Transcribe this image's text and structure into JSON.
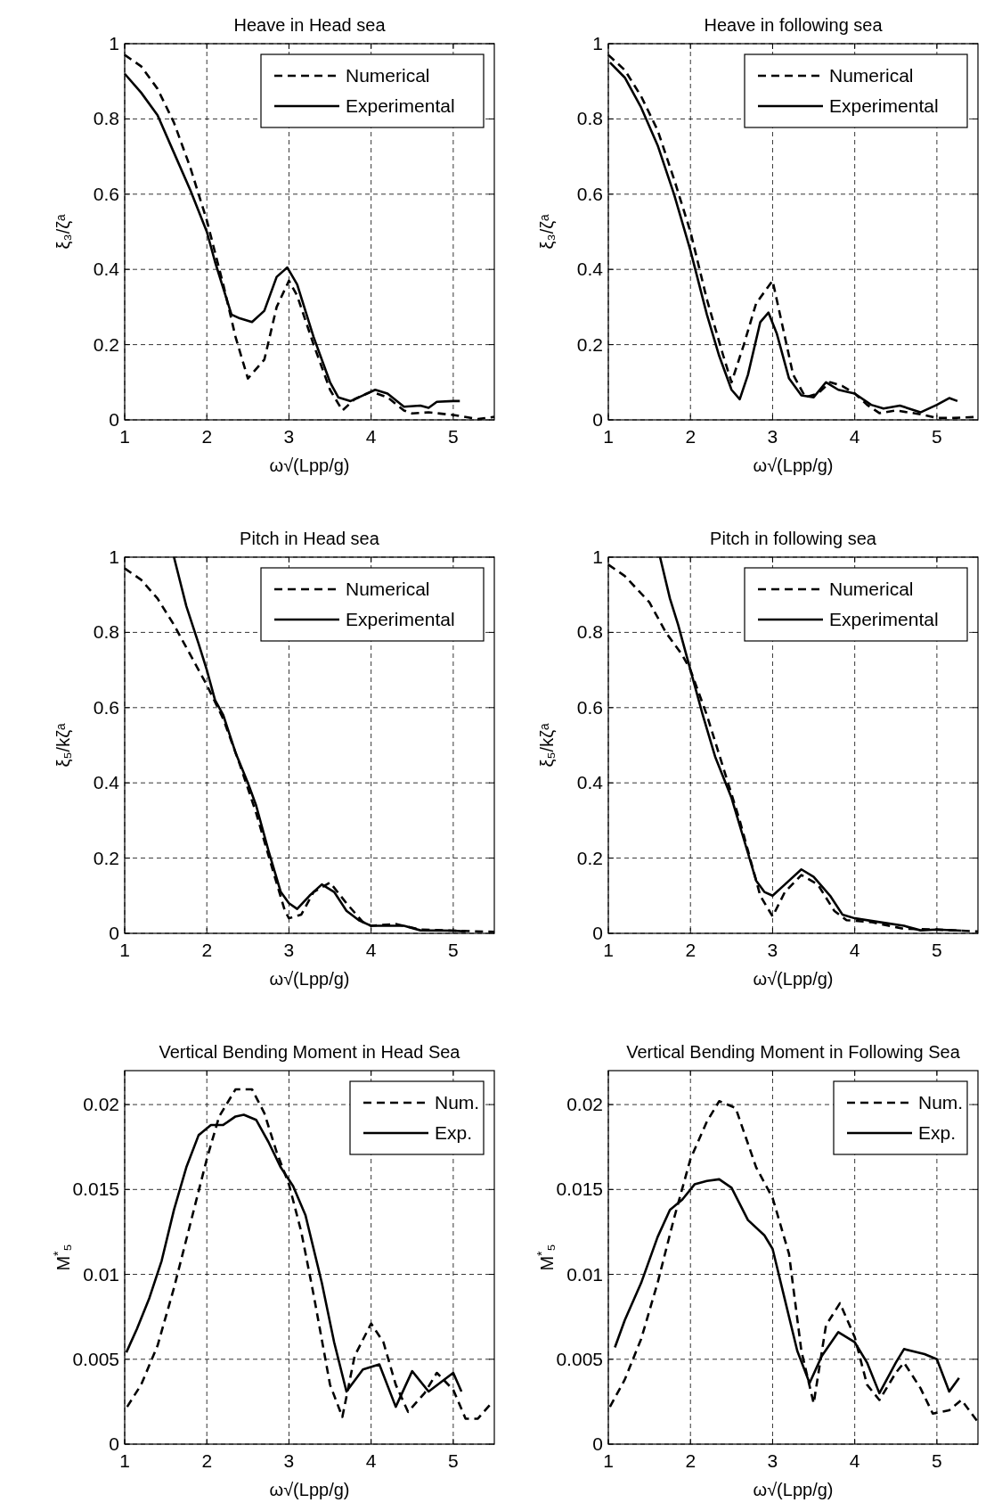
{
  "chart_data": [
    {
      "type": "line",
      "title": "Heave in Head sea",
      "xlabel": "ω√(Lpp/g)",
      "ylabel": "ξ₃/ζᵃ",
      "xlim": [
        1,
        5.5
      ],
      "xticks": [
        1,
        2,
        3,
        4,
        5
      ],
      "ylim": [
        0,
        1
      ],
      "yticks": [
        0,
        0.2,
        0.4,
        0.6,
        0.8,
        1
      ],
      "grid": true,
      "legend": "top right",
      "series": [
        {
          "name": "Numerical",
          "color": "#000000",
          "line_style": "dashed",
          "x": [
            1,
            1.2,
            1.4,
            1.6,
            1.8,
            2.0,
            2.2,
            2.35,
            2.5,
            2.7,
            2.85,
            3.0,
            3.1,
            3.3,
            3.5,
            3.65,
            3.8,
            4.0,
            4.2,
            4.4,
            4.5,
            4.7,
            5.0,
            5.3,
            5.5
          ],
          "values": [
            0.97,
            0.94,
            0.88,
            0.79,
            0.67,
            0.53,
            0.36,
            0.22,
            0.11,
            0.16,
            0.3,
            0.37,
            0.33,
            0.2,
            0.08,
            0.025,
            0.055,
            0.075,
            0.06,
            0.025,
            0.017,
            0.02,
            0.013,
            0.002,
            0.008
          ]
        },
        {
          "name": "Experimental",
          "color": "#000000",
          "line_style": "solid",
          "x": [
            1,
            1.2,
            1.4,
            1.6,
            1.8,
            2.0,
            2.1,
            2.2,
            2.3,
            2.4,
            2.55,
            2.7,
            2.85,
            2.98,
            3.1,
            3.3,
            3.5,
            3.6,
            3.75,
            3.9,
            4.05,
            4.2,
            4.4,
            4.6,
            4.7,
            4.8,
            5.0,
            5.08
          ],
          "values": [
            0.92,
            0.87,
            0.81,
            0.71,
            0.61,
            0.5,
            0.42,
            0.35,
            0.28,
            0.27,
            0.26,
            0.29,
            0.38,
            0.405,
            0.36,
            0.22,
            0.1,
            0.06,
            0.05,
            0.065,
            0.08,
            0.07,
            0.035,
            0.038,
            0.032,
            0.048,
            0.05,
            0.05
          ]
        }
      ]
    },
    {
      "type": "line",
      "title": "Heave in following sea",
      "xlabel": "ω√(Lpp/g)",
      "ylabel": "ξ₃/ζᵃ",
      "xlim": [
        1,
        5.5
      ],
      "xticks": [
        1,
        2,
        3,
        4,
        5
      ],
      "ylim": [
        0,
        1
      ],
      "yticks": [
        0,
        0.2,
        0.4,
        0.6,
        0.8,
        1
      ],
      "grid": true,
      "legend": "top right",
      "series": [
        {
          "name": "Numerical",
          "color": "#000000",
          "line_style": "dashed",
          "x": [
            1,
            1.2,
            1.4,
            1.6,
            1.8,
            2.0,
            2.2,
            2.4,
            2.5,
            2.65,
            2.8,
            3.0,
            3.1,
            3.25,
            3.4,
            3.55,
            3.7,
            3.85,
            4.0,
            4.15,
            4.3,
            4.5,
            4.8,
            5.0,
            5.2,
            5.5
          ],
          "values": [
            0.97,
            0.93,
            0.86,
            0.77,
            0.64,
            0.5,
            0.32,
            0.17,
            0.1,
            0.2,
            0.31,
            0.37,
            0.27,
            0.12,
            0.06,
            0.07,
            0.1,
            0.09,
            0.07,
            0.04,
            0.018,
            0.025,
            0.015,
            0.005,
            0.005,
            0.008
          ]
        },
        {
          "name": "Experimental",
          "color": "#000000",
          "line_style": "solid",
          "x": [
            1.02,
            1.2,
            1.4,
            1.6,
            1.8,
            2.0,
            2.2,
            2.35,
            2.5,
            2.6,
            2.7,
            2.85,
            2.95,
            3.05,
            3.2,
            3.35,
            3.5,
            3.65,
            3.8,
            4.0,
            4.2,
            4.35,
            4.55,
            4.8,
            5.0,
            5.15,
            5.25
          ],
          "values": [
            0.95,
            0.91,
            0.83,
            0.73,
            0.6,
            0.45,
            0.28,
            0.17,
            0.08,
            0.055,
            0.12,
            0.26,
            0.285,
            0.23,
            0.11,
            0.065,
            0.06,
            0.1,
            0.08,
            0.07,
            0.04,
            0.03,
            0.038,
            0.02,
            0.04,
            0.058,
            0.05
          ]
        }
      ]
    },
    {
      "type": "line",
      "title": "Pitch in Head sea",
      "xlabel": "ω√(Lpp/g)",
      "ylabel": "ξ₅/kζᵃ",
      "xlim": [
        1,
        5.5
      ],
      "xticks": [
        1,
        2,
        3,
        4,
        5
      ],
      "ylim": [
        0,
        1
      ],
      "yticks": [
        0,
        0.2,
        0.4,
        0.6,
        0.8,
        1
      ],
      "grid": true,
      "legend": "top right",
      "series": [
        {
          "name": "Numerical",
          "color": "#000000",
          "line_style": "dashed",
          "x": [
            1,
            1.2,
            1.4,
            1.6,
            1.8,
            2.0,
            2.2,
            2.4,
            2.6,
            2.8,
            2.95,
            3.0,
            3.15,
            3.3,
            3.5,
            3.7,
            3.9,
            4.0,
            4.3,
            4.6,
            5.0,
            5.5
          ],
          "values": [
            0.97,
            0.94,
            0.89,
            0.82,
            0.74,
            0.66,
            0.57,
            0.45,
            0.32,
            0.17,
            0.06,
            0.04,
            0.05,
            0.11,
            0.135,
            0.08,
            0.03,
            0.02,
            0.025,
            0.01,
            0.007,
            0.004
          ]
        },
        {
          "name": "Experimental",
          "color": "#000000",
          "line_style": "solid",
          "x": [
            1.6,
            1.75,
            1.9,
            2.0,
            2.1,
            2.2,
            2.35,
            2.5,
            2.6,
            2.75,
            2.9,
            3.0,
            3.1,
            3.25,
            3.4,
            3.55,
            3.7,
            3.85,
            4.0,
            4.2,
            4.4,
            4.6,
            5.0,
            5.15
          ],
          "values": [
            1.0,
            0.87,
            0.77,
            0.7,
            0.62,
            0.58,
            0.48,
            0.4,
            0.34,
            0.22,
            0.11,
            0.08,
            0.065,
            0.1,
            0.13,
            0.11,
            0.06,
            0.035,
            0.02,
            0.02,
            0.02,
            0.008,
            0.007,
            0.005
          ]
        }
      ]
    },
    {
      "type": "line",
      "title": "Pitch in following sea",
      "xlabel": "ω√(Lpp/g)",
      "ylabel": "ξ₅/kζᵃ",
      "xlim": [
        1,
        5.5
      ],
      "xticks": [
        1,
        2,
        3,
        4,
        5
      ],
      "ylim": [
        0,
        1
      ],
      "yticks": [
        0,
        0.2,
        0.4,
        0.6,
        0.8,
        1
      ],
      "grid": true,
      "legend": "top right",
      "series": [
        {
          "name": "Numerical",
          "color": "#000000",
          "line_style": "dashed",
          "x": [
            1,
            1.2,
            1.5,
            1.7,
            1.9,
            2.0,
            2.2,
            2.4,
            2.6,
            2.75,
            2.85,
            3.0,
            3.15,
            3.35,
            3.55,
            3.75,
            3.9,
            4.2,
            4.6,
            5.0,
            5.5
          ],
          "values": [
            0.98,
            0.95,
            0.88,
            0.8,
            0.74,
            0.7,
            0.58,
            0.44,
            0.3,
            0.18,
            0.1,
            0.045,
            0.11,
            0.155,
            0.13,
            0.06,
            0.035,
            0.03,
            0.012,
            0.01,
            0.005
          ]
        },
        {
          "name": "Experimental",
          "color": "#000000",
          "line_style": "solid",
          "x": [
            1.63,
            1.75,
            1.85,
            2.0,
            2.15,
            2.3,
            2.5,
            2.65,
            2.8,
            2.9,
            3.0,
            3.15,
            3.35,
            3.5,
            3.7,
            3.85,
            4.0,
            4.3,
            4.6,
            4.8,
            5.0,
            5.3
          ],
          "values": [
            1.0,
            0.89,
            0.82,
            0.7,
            0.58,
            0.47,
            0.36,
            0.25,
            0.14,
            0.11,
            0.1,
            0.13,
            0.17,
            0.15,
            0.1,
            0.05,
            0.04,
            0.03,
            0.02,
            0.008,
            0.01,
            0.007
          ]
        }
      ]
    },
    {
      "type": "line",
      "title": "Vertical Bending Moment in Head Sea",
      "xlabel": "ω√(Lpp/g)",
      "ylabel": "M$^{*}$₅",
      "xlim": [
        1,
        5.5
      ],
      "xticks": [
        1,
        2,
        3,
        4,
        5
      ],
      "ylim": [
        0,
        0.022
      ],
      "yticks": [
        0,
        0.005,
        0.01,
        0.015,
        0.02
      ],
      "grid": true,
      "legend": "top right",
      "series": [
        {
          "name": "Num.",
          "color": "#000000",
          "line_style": "dashed",
          "x": [
            1.03,
            1.2,
            1.4,
            1.6,
            1.8,
            2.0,
            2.15,
            2.35,
            2.55,
            2.7,
            2.85,
            3.0,
            3.15,
            3.3,
            3.5,
            3.65,
            3.8,
            4.0,
            4.15,
            4.3,
            4.45,
            4.65,
            4.8,
            5.0,
            5.15,
            5.3,
            5.48
          ],
          "values": [
            0.0022,
            0.0035,
            0.0058,
            0.0092,
            0.013,
            0.0168,
            0.0193,
            0.0209,
            0.0209,
            0.0195,
            0.0172,
            0.0153,
            0.0125,
            0.0088,
            0.0035,
            0.0016,
            0.0052,
            0.0071,
            0.006,
            0.0035,
            0.0019,
            0.003,
            0.0042,
            0.0032,
            0.0015,
            0.0015,
            0.0025
          ]
        },
        {
          "name": "Exp.",
          "color": "#000000",
          "line_style": "solid",
          "x": [
            1.02,
            1.15,
            1.3,
            1.45,
            1.6,
            1.75,
            1.9,
            2.05,
            2.2,
            2.35,
            2.45,
            2.6,
            2.75,
            2.9,
            3.05,
            3.2,
            3.4,
            3.55,
            3.7,
            3.9,
            4.1,
            4.3,
            4.5,
            4.7,
            5.0,
            5.1
          ],
          "values": [
            0.0054,
            0.0068,
            0.0086,
            0.0108,
            0.0138,
            0.0163,
            0.0182,
            0.0188,
            0.0188,
            0.0193,
            0.0194,
            0.0191,
            0.0178,
            0.0163,
            0.0152,
            0.0135,
            0.0095,
            0.006,
            0.0031,
            0.0044,
            0.0047,
            0.0022,
            0.0043,
            0.0031,
            0.0042,
            0.0031
          ]
        }
      ]
    },
    {
      "type": "line",
      "title": "Vertical Bending Moment in Following Sea",
      "xlabel": "ω√(Lpp/g)",
      "ylabel": "M$^{*}$₅",
      "xlim": [
        1,
        5.5
      ],
      "xticks": [
        1,
        2,
        3,
        4,
        5
      ],
      "ylim": [
        0,
        0.022
      ],
      "yticks": [
        0,
        0.005,
        0.01,
        0.015,
        0.02
      ],
      "grid": true,
      "legend": "top right",
      "series": [
        {
          "name": "Num.",
          "color": "#000000",
          "line_style": "dashed",
          "x": [
            1.02,
            1.2,
            1.4,
            1.6,
            1.8,
            2.0,
            2.2,
            2.35,
            2.55,
            2.8,
            3.0,
            3.2,
            3.35,
            3.5,
            3.65,
            3.82,
            4.0,
            4.15,
            4.3,
            4.5,
            4.6,
            4.8,
            4.95,
            5.15,
            5.3,
            5.5
          ],
          "values": [
            0.0022,
            0.0038,
            0.0062,
            0.0095,
            0.0133,
            0.0168,
            0.019,
            0.0202,
            0.0198,
            0.0163,
            0.0145,
            0.0112,
            0.0055,
            0.0024,
            0.007,
            0.0083,
            0.0063,
            0.0035,
            0.0026,
            0.0042,
            0.0048,
            0.0033,
            0.0018,
            0.002,
            0.0026,
            0.0013
          ]
        },
        {
          "name": "Exp.",
          "color": "#000000",
          "line_style": "solid",
          "x": [
            1.08,
            1.2,
            1.4,
            1.6,
            1.75,
            1.9,
            2.05,
            2.2,
            2.35,
            2.5,
            2.7,
            2.9,
            3.0,
            3.15,
            3.3,
            3.45,
            3.6,
            3.8,
            4.0,
            4.15,
            4.3,
            4.5,
            4.6,
            4.85,
            5.0,
            5.15,
            5.27
          ],
          "values": [
            0.0057,
            0.0073,
            0.0095,
            0.0122,
            0.0138,
            0.0144,
            0.0153,
            0.0155,
            0.0156,
            0.0151,
            0.0132,
            0.0123,
            0.0115,
            0.0085,
            0.0055,
            0.0036,
            0.0052,
            0.0066,
            0.006,
            0.0048,
            0.003,
            0.0048,
            0.0056,
            0.0053,
            0.005,
            0.0031,
            0.0039
          ]
        }
      ]
    }
  ]
}
